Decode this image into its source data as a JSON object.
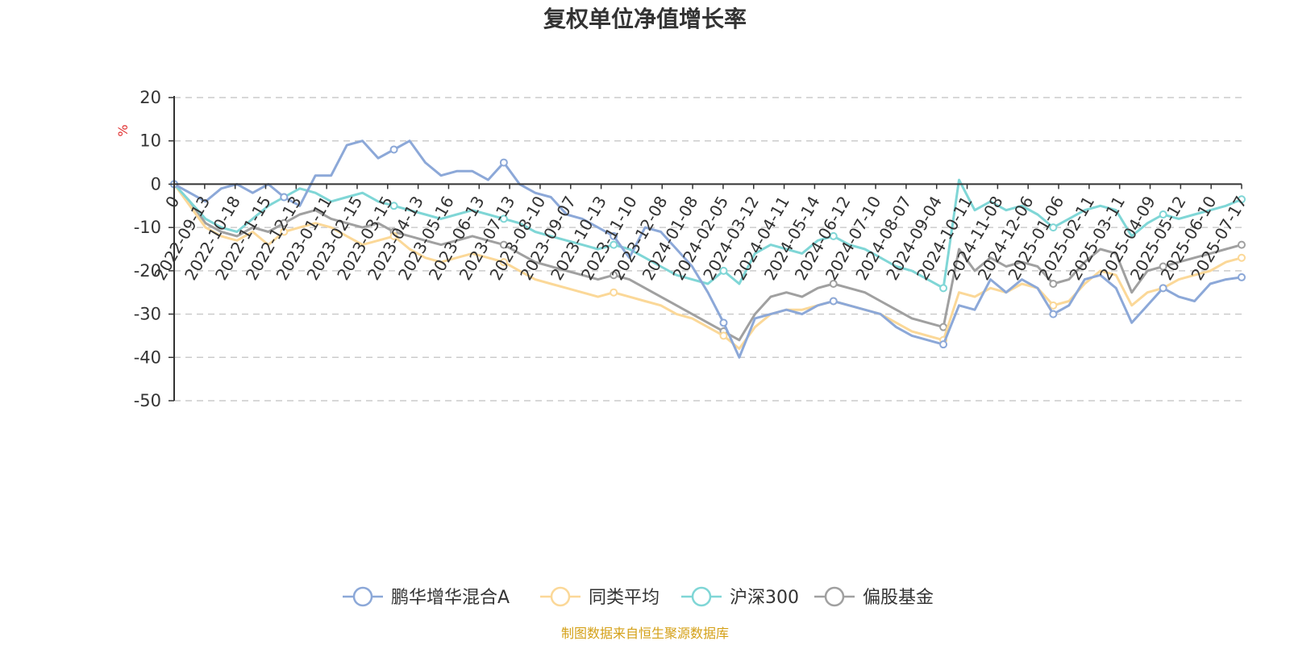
{
  "colors": {
    "fund": "#8ca8d8",
    "peer": "#fbd898",
    "hs300": "#7fd6d6",
    "equity": "#a0a0a0",
    "grid": "#cccccc",
    "axis": "#333333"
  },
  "chart_data": {
    "type": "line",
    "title": "复权单位净值增长率",
    "ylabel": "%",
    "ylim": [
      -50,
      20
    ],
    "yticks": [
      20,
      10,
      0,
      -10,
      -20,
      -30,
      -40,
      -50
    ],
    "grid": true,
    "legend_position": "bottom-center",
    "x_labels": [
      "0",
      "2022-09-13",
      "2022-10-18",
      "2022-11-15",
      "2022-12-13",
      "2023-01-11",
      "2023-02-15",
      "2023-03-15",
      "2023-04-13",
      "2023-05-16",
      "2023-06-13",
      "2023-07-13",
      "2023-08-10",
      "2023-09-07",
      "2023-10-13",
      "2023-11-10",
      "2023-12-08",
      "2024-01-08",
      "2024-02-05",
      "2024-03-12",
      "2024-04-11",
      "2024-05-14",
      "2024-06-12",
      "2024-07-10",
      "2024-08-07",
      "2024-09-04",
      "2024-10-11",
      "2024-11-08",
      "2024-12-06",
      "2025-01-06",
      "2025-02-11",
      "2025-03-11",
      "2025-04-09",
      "2025-05-12",
      "2025-06-10",
      "2025-07-17"
    ],
    "series": [
      {
        "name": "鹏华增华混合A",
        "color_key": "fund",
        "values": [
          0,
          -2,
          -4,
          -1,
          0,
          -2,
          0,
          -3,
          -5,
          2,
          2,
          9,
          10,
          6,
          8,
          10,
          5,
          2,
          3,
          3,
          1,
          5,
          0,
          -2,
          -3,
          -7,
          -8,
          -10,
          -12,
          -17,
          -10,
          -11,
          -15,
          -19,
          -25,
          -32,
          -40,
          -31,
          -30,
          -29,
          -30,
          -28,
          -27,
          -28,
          -29,
          -30,
          -33,
          -35,
          -36,
          -37,
          -28,
          -29,
          -22,
          -25,
          -22,
          -24,
          -30,
          -28,
          -22,
          -21,
          -24,
          -32,
          -28,
          -24,
          -26,
          -27,
          -23,
          -22,
          -21.5
        ],
        "markers": [
          0,
          7,
          14,
          21,
          28,
          35,
          42,
          49,
          56,
          63,
          68
        ]
      },
      {
        "name": "同类平均",
        "color_key": "peer",
        "values": [
          0,
          -5,
          -10,
          -12,
          -13,
          -11,
          -14,
          -11,
          -10,
          -9,
          -10,
          -12,
          -14,
          -13,
          -12,
          -15,
          -17,
          -18,
          -17,
          -16,
          -17,
          -18,
          -20,
          -22,
          -23,
          -24,
          -25,
          -26,
          -25,
          -26,
          -27,
          -28,
          -30,
          -31,
          -33,
          -35,
          -38,
          -33,
          -30,
          -29,
          -29,
          -28,
          -27,
          -28,
          -29,
          -30,
          -32,
          -34,
          -35,
          -36,
          -25,
          -26,
          -24,
          -25,
          -23,
          -24,
          -28,
          -27,
          -23,
          -20,
          -21,
          -28,
          -25,
          -24,
          -22,
          -21,
          -20,
          -18,
          -17
        ],
        "markers": [
          0,
          7,
          14,
          21,
          28,
          35,
          42,
          49,
          56,
          63,
          68
        ]
      },
      {
        "name": "沪深300",
        "color_key": "hs300",
        "values": [
          0,
          -4,
          -8,
          -10,
          -11,
          -8,
          -5,
          -3,
          -1,
          -2,
          -4,
          -3,
          -2,
          -4,
          -5,
          -6,
          -7,
          -8,
          -7,
          -6,
          -7,
          -8,
          -9,
          -11,
          -12,
          -13,
          -14,
          -15,
          -14,
          -15,
          -17,
          -19,
          -21,
          -22,
          -23,
          -20,
          -23,
          -16,
          -14,
          -15,
          -16,
          -13,
          -12,
          -14,
          -15,
          -17,
          -19,
          -20,
          -22,
          -24,
          1,
          -6,
          -4,
          -6,
          -5,
          -7,
          -10,
          -8,
          -6,
          -5,
          -6,
          -12,
          -9,
          -7,
          -8,
          -7,
          -6,
          -5,
          -3.5
        ],
        "markers": [
          0,
          7,
          14,
          21,
          28,
          35,
          42,
          49,
          56,
          63,
          68
        ]
      },
      {
        "name": "偏股基金",
        "color_key": "equity",
        "values": [
          0,
          -4,
          -9,
          -11,
          -12,
          -10,
          -11,
          -9,
          -7,
          -6,
          -8,
          -9,
          -10,
          -9,
          -11,
          -12,
          -13,
          -14,
          -13,
          -12,
          -13,
          -14,
          -16,
          -18,
          -19,
          -20,
          -21,
          -22,
          -21,
          -22,
          -24,
          -26,
          -28,
          -30,
          -32,
          -34,
          -36,
          -30,
          -26,
          -25,
          -26,
          -24,
          -23,
          -24,
          -25,
          -27,
          -29,
          -31,
          -32,
          -33,
          -15,
          -20,
          -17,
          -19,
          -18,
          -19,
          -23,
          -22,
          -18,
          -15,
          -16,
          -25,
          -20,
          -19,
          -18,
          -17,
          -16,
          -15,
          -14
        ],
        "markers": [
          0,
          7,
          14,
          21,
          28,
          35,
          42,
          49,
          56,
          63,
          68
        ]
      }
    ]
  },
  "source_note": "制图数据来自恒生聚源数据库"
}
